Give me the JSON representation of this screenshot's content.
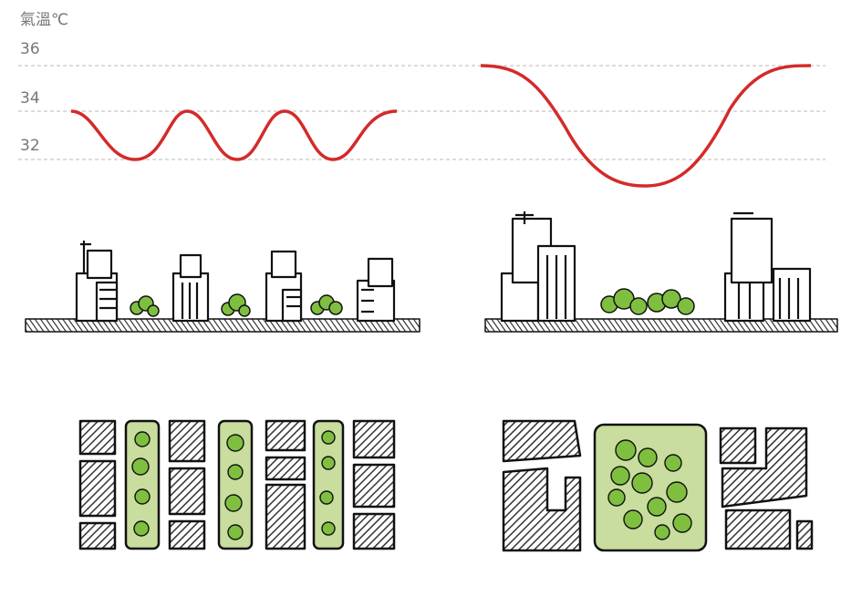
{
  "axis": {
    "unit_label": "氣溫℃",
    "ticks": [
      "36",
      "34",
      "32"
    ]
  },
  "chart_data": {
    "type": "line",
    "ylabel": "氣溫℃",
    "yticks": [
      36,
      34,
      32
    ],
    "series": [
      {
        "panel": "left",
        "shape": "oscillating",
        "min": 32,
        "max": 34
      },
      {
        "panel": "right",
        "shape": "single-dip",
        "min": 31,
        "max": 36
      }
    ]
  },
  "colors": {
    "temperature_line": "#d42a2a",
    "grid_line": "#c8c8c8",
    "ink": "#1a1a1a",
    "building_fill": "#ffffff",
    "hatch_fill": "#6b6b6b",
    "green_space": "#c8dd9e",
    "tree": "#7fbf3f"
  }
}
